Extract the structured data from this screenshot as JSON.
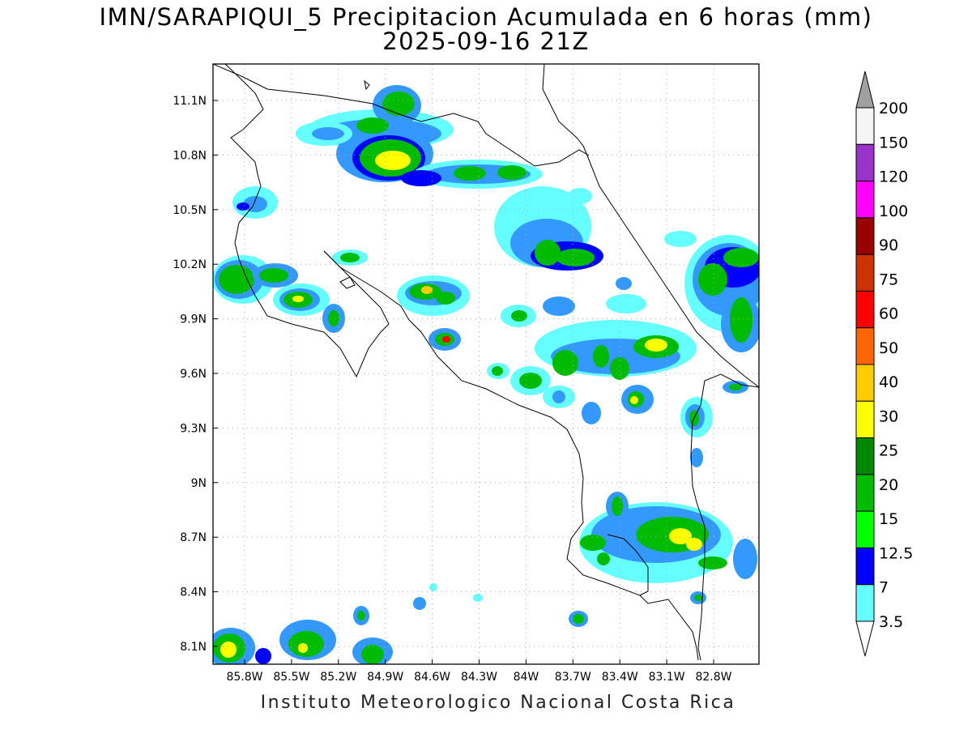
{
  "title_line1": "IMN/SARAPIQUI_5 Precipitacion Acumulada en 6 horas (mm)",
  "title_line2": "2025-09-16 21Z",
  "footer": "Instituto Meteorologico Nacional Costa Rica",
  "map": {
    "lon_range": [
      -86.05,
      -82.55
    ],
    "lat_range": [
      8.0,
      11.3
    ],
    "x_ticks": [
      "85.8W",
      "85.5W",
      "85.2W",
      "84.9W",
      "84.6W",
      "84.3W",
      "84W",
      "83.7W",
      "83.4W",
      "83.1W",
      "82.8W"
    ],
    "y_ticks": [
      "11.1N",
      "10.8N",
      "10.5N",
      "10.2N",
      "9.9N",
      "9.6N",
      "9.3N",
      "9N",
      "8.7N",
      "8.4N",
      "8.1N"
    ],
    "grid": true
  },
  "colorbar": {
    "labels": [
      "200",
      "150",
      "120",
      "100",
      "90",
      "75",
      "60",
      "50",
      "40",
      "30",
      "25",
      "20",
      "15",
      "12.5",
      "7",
      "3.5"
    ],
    "colors": [
      "#a0a0a0",
      "#f5f5f5",
      "#9933cc",
      "#ff00ff",
      "#990000",
      "#cc3300",
      "#ff0000",
      "#ff6600",
      "#ffcc00",
      "#ffff00",
      "#008800",
      "#00bb00",
      "#00ff00",
      "#0000ff",
      "#3399ff",
      "#66ffff"
    ]
  }
}
